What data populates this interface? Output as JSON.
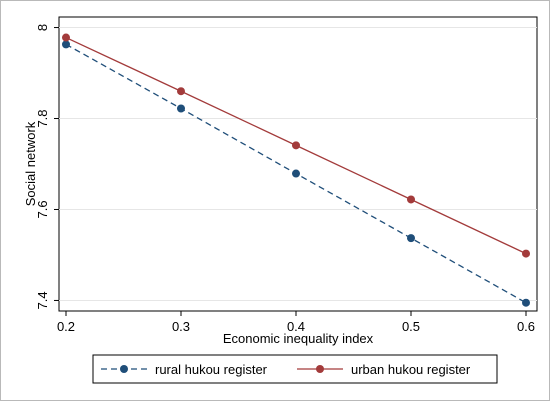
{
  "chart_data": {
    "type": "line",
    "xlabel": "Economic inequality index",
    "ylabel": "Social network",
    "xlim": [
      0.2,
      0.6
    ],
    "ylim": [
      7.39,
      8.01
    ],
    "x_ticks": [
      "0.2",
      "0.3",
      "0.4",
      "0.5",
      "0.6"
    ],
    "y_ticks": [
      "7.4",
      "7.6",
      "7.8",
      "8"
    ],
    "x": [
      0.2,
      0.3,
      0.4,
      0.5,
      0.6
    ],
    "grid": true,
    "legend_position": "bottom",
    "series": [
      {
        "name": "rural hukou register",
        "values": [
          7.963,
          7.822,
          7.679,
          7.537,
          7.395
        ],
        "color": "#1f4e79",
        "line_style": "dashed"
      },
      {
        "name": "urban hukou register",
        "values": [
          7.978,
          7.86,
          7.741,
          7.622,
          7.503
        ],
        "color": "#a33b3b",
        "line_style": "solid"
      }
    ]
  }
}
